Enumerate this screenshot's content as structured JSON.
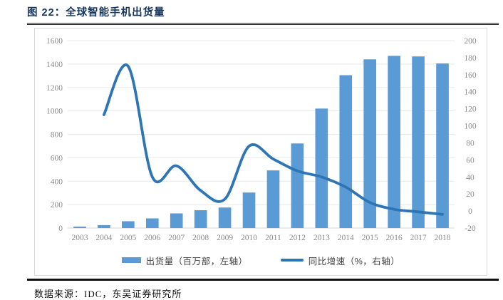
{
  "figure": {
    "title": "图 22：全球智能手机出货量",
    "source": "数据来源：IDC，东吴证券研究所"
  },
  "legend": {
    "bars_label": "出货量（百万部，左轴）",
    "line_label": "同比增速（%，右轴）"
  },
  "colors": {
    "bar": "#5b9bd5",
    "line": "#2e75b6",
    "title_text": "#17375e",
    "grid": "#e8e8e8",
    "axis_line": "#d9d9d9",
    "tick_text": "#8c8c8c",
    "rule": "#111111"
  },
  "chart_data": {
    "type": "bar",
    "subtype": "bar+line combo, dual axis",
    "title": "全球智能手机出货量",
    "categories": [
      "2003",
      "2004",
      "2005",
      "2006",
      "2007",
      "2008",
      "2009",
      "2010",
      "2011",
      "2012",
      "2013",
      "2014",
      "2015",
      "2016",
      "2017",
      "2018"
    ],
    "series": [
      {
        "name": "出货量（百万部，左轴）",
        "type": "bar",
        "axis": "left",
        "values": [
          12,
          25,
          58,
          82,
          125,
          152,
          175,
          303,
          492,
          722,
          1020,
          1305,
          1440,
          1470,
          1465,
          1405
        ]
      },
      {
        "name": "同比增速（%，右轴）",
        "type": "line",
        "axis": "right",
        "start_category": "2004",
        "values": [
          113,
          170,
          40,
          53,
          24,
          14,
          76,
          61,
          47,
          40,
          28,
          10,
          2,
          -1,
          -4
        ]
      }
    ],
    "left_axis": {
      "min": 0,
      "max": 1600,
      "step": 200,
      "tick_labels": [
        "0",
        "200",
        "400",
        "600",
        "800",
        "1000",
        "1200",
        "1400",
        "1600"
      ]
    },
    "right_axis": {
      "min": -20,
      "max": 200,
      "step": 20,
      "tick_labels": [
        "-20",
        "0",
        "20",
        "40",
        "60",
        "80",
        "100",
        "120",
        "140",
        "160",
        "180",
        "200"
      ]
    },
    "grid": true,
    "legend_position": "bottom"
  }
}
